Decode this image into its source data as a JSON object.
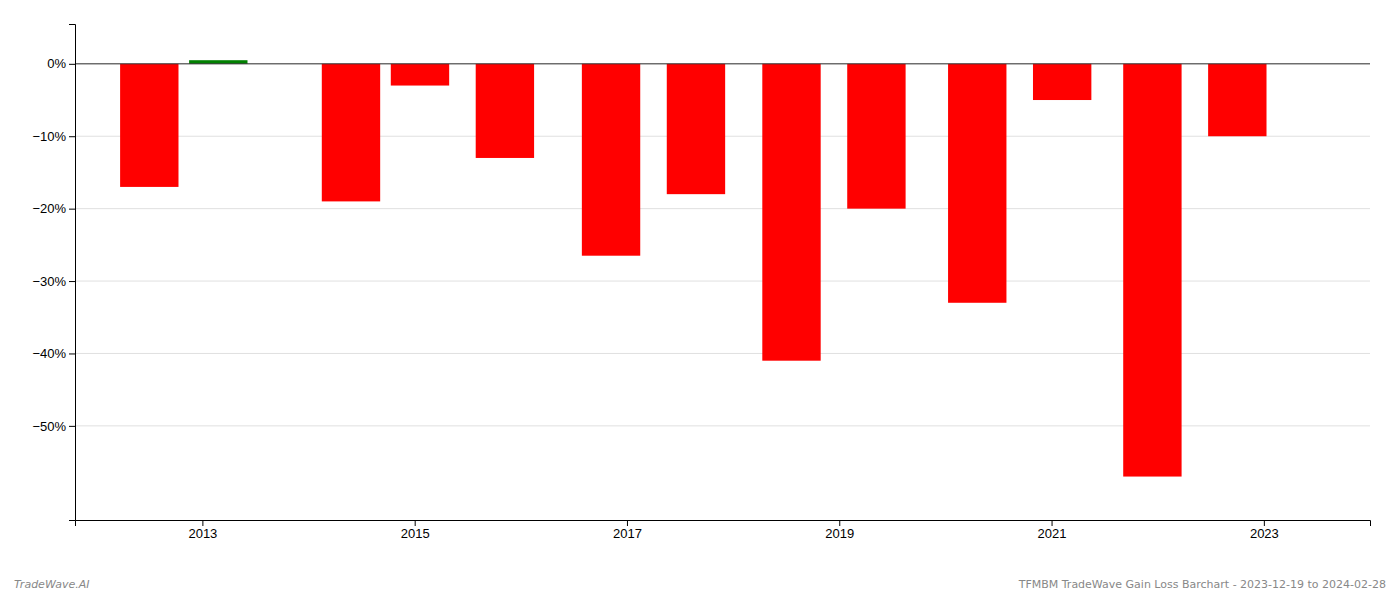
{
  "chart_data": {
    "type": "bar",
    "x": [
      2012.5,
      2013.15,
      2014.4,
      2015.05,
      2015.85,
      2016.85,
      2017.65,
      2018.55,
      2019.35,
      2020.3,
      2021.1,
      2021.95,
      2022.75
    ],
    "values": [
      -0.17,
      0.005,
      -0.19,
      -0.03,
      -0.13,
      -0.265,
      -0.18,
      -0.41,
      -0.2,
      -0.33,
      -0.05,
      -0.57,
      -0.1
    ],
    "colors": [
      "#ff0000",
      "#008000",
      "#ff0000",
      "#ff0000",
      "#ff0000",
      "#ff0000",
      "#ff0000",
      "#ff0000",
      "#ff0000",
      "#ff0000",
      "#ff0000",
      "#ff0000",
      "#ff0000"
    ],
    "xlim": [
      2011.8,
      2024.0
    ],
    "ylim": [
      -0.63,
      0.055
    ],
    "xticks": [
      2013,
      2015,
      2017,
      2019,
      2021,
      2023
    ],
    "yticks": [
      {
        "value": 0.0,
        "label": "0%"
      },
      {
        "value": -0.1,
        "label": "−10%"
      },
      {
        "value": -0.2,
        "label": "−20%"
      },
      {
        "value": -0.3,
        "label": "−30%"
      },
      {
        "value": -0.4,
        "label": "−40%"
      },
      {
        "value": -0.5,
        "label": "−50%"
      }
    ],
    "grid": true,
    "annotations": [
      "TradeWave.AI",
      "TFMBM TradeWave Gain Loss Barchart - 2023-12-19 to 2024-02-28"
    ]
  }
}
